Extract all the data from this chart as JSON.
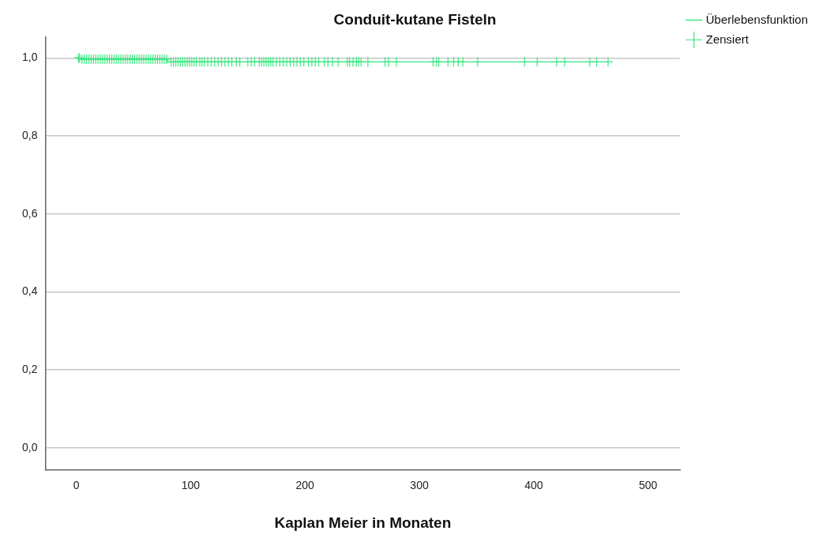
{
  "chart_data": {
    "type": "step",
    "title": "Conduit-kutane Fisteln",
    "xlabel": "Kaplan Meier in Monaten",
    "xlim": [
      -27,
      528
    ],
    "xticks": [
      0,
      100,
      200,
      300,
      400,
      500
    ],
    "ylim": [
      -0.056,
      1.054
    ],
    "yticks": [
      {
        "value": 0,
        "label": "0,0"
      },
      {
        "value": 0.2,
        "label": "0,2"
      },
      {
        "value": 0.4,
        "label": "0,4"
      },
      {
        "value": 0.6,
        "label": "0,6"
      },
      {
        "value": 0.8,
        "label": "0,8"
      },
      {
        "value": 1,
        "label": "1,0"
      }
    ],
    "grid": "y",
    "legend": "top right",
    "series": [
      {
        "name": "Überlebensfunktion",
        "type": "step",
        "color": "#3ee882",
        "marker": "none",
        "x": [
          0,
          4,
          80,
          465
        ],
        "values": [
          1,
          0.997,
          0.99,
          0.99
        ]
      },
      {
        "name": "Zensiert",
        "type": "scatter",
        "color": "#3ee882",
        "marker": "cross",
        "x": [
          2,
          3,
          5,
          7,
          9,
          11,
          13,
          15,
          17,
          19,
          21,
          23,
          25,
          27,
          29,
          31,
          33,
          35,
          37,
          39,
          41,
          43,
          45,
          47,
          49,
          51,
          53,
          55,
          57,
          59,
          61,
          63,
          65,
          67,
          69,
          71,
          73,
          75,
          77,
          79,
          83,
          85,
          87,
          89,
          91,
          93,
          95,
          97,
          99,
          101,
          103,
          105,
          108,
          110,
          112,
          115,
          118,
          121,
          124,
          127,
          130,
          133,
          136,
          140,
          143,
          150,
          153,
          156,
          160,
          162,
          164,
          166,
          168,
          170,
          172,
          175,
          178,
          181,
          184,
          187,
          190,
          193,
          196,
          199,
          203,
          206,
          209,
          212,
          217,
          220,
          224,
          229,
          237,
          239,
          242,
          245,
          247,
          249,
          255,
          270,
          273,
          280,
          312,
          315,
          317,
          325,
          330,
          334,
          338,
          351,
          392,
          403,
          420,
          427,
          449,
          455,
          465
        ],
        "values": [
          1,
          1,
          0.997,
          0.997,
          0.997,
          0.997,
          0.997,
          0.997,
          0.997,
          0.997,
          0.997,
          0.997,
          0.997,
          0.997,
          0.997,
          0.997,
          0.997,
          0.997,
          0.997,
          0.997,
          0.997,
          0.997,
          0.997,
          0.997,
          0.997,
          0.997,
          0.997,
          0.997,
          0.997,
          0.997,
          0.997,
          0.997,
          0.997,
          0.997,
          0.997,
          0.997,
          0.997,
          0.997,
          0.997,
          0.997,
          0.99,
          0.99,
          0.99,
          0.99,
          0.99,
          0.99,
          0.99,
          0.99,
          0.99,
          0.99,
          0.99,
          0.99,
          0.99,
          0.99,
          0.99,
          0.99,
          0.99,
          0.99,
          0.99,
          0.99,
          0.99,
          0.99,
          0.99,
          0.99,
          0.99,
          0.99,
          0.99,
          0.99,
          0.99,
          0.99,
          0.99,
          0.99,
          0.99,
          0.99,
          0.99,
          0.99,
          0.99,
          0.99,
          0.99,
          0.99,
          0.99,
          0.99,
          0.99,
          0.99,
          0.99,
          0.99,
          0.99,
          0.99,
          0.99,
          0.99,
          0.99,
          0.99,
          0.99,
          0.99,
          0.99,
          0.99,
          0.99,
          0.99,
          0.99,
          0.99,
          0.99,
          0.99,
          0.99,
          0.99,
          0.99,
          0.99,
          0.99,
          0.99,
          0.99,
          0.99,
          0.99,
          0.99,
          0.99,
          0.99,
          0.99,
          0.99,
          0.99
        ]
      }
    ]
  }
}
